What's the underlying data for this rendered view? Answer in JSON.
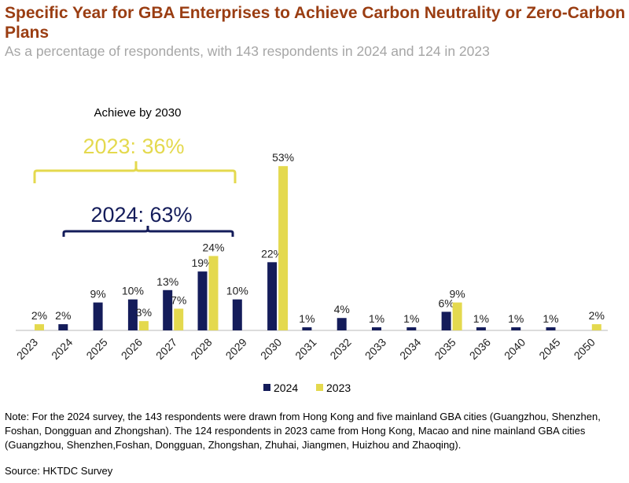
{
  "chart_data": {
    "type": "bar",
    "title": "Specific Year for GBA Enterprises to Achieve Carbon Neutrality or Zero-Carbon Plans",
    "subtitle": "As a percentage of respondents, with 143 respondents in 2024 and 124 in 2023",
    "categories": [
      "2023",
      "2024",
      "2025",
      "2026",
      "2027",
      "2028",
      "2029",
      "2030",
      "2031",
      "2032",
      "2033",
      "2034",
      "2035",
      "2036",
      "2040",
      "2045",
      "2050"
    ],
    "series": [
      {
        "name": "2024",
        "color": "#141c5a",
        "values": [
          null,
          2,
          9,
          10,
          13,
          19,
          10,
          22,
          1,
          4,
          1,
          1,
          6,
          1,
          1,
          1,
          null
        ]
      },
      {
        "name": "2023",
        "color": "#e4d94e",
        "values": [
          2,
          null,
          null,
          3,
          7,
          24,
          null,
          53,
          null,
          null,
          null,
          null,
          9,
          null,
          null,
          null,
          2
        ]
      }
    ],
    "value_suffix": "%",
    "ylim": [
      0,
      55
    ],
    "grid": false,
    "legend": "bottom",
    "annotations": {
      "heading": "Achieve by 2030",
      "label_2023": "2023: 36%",
      "label_2024": "2024: 63%"
    }
  },
  "note": "Note: For the 2024 survey, the 143 respondents were drawn from Hong Kong and five mainland GBA cities (Guangzhou, Shenzhen, Foshan, Dongguan and Zhongshan). The 124 respondents in 2023 came from Hong Kong, Macao and nine mainland GBA cities (Guangzhou, Shenzhen,Foshan, Dongguan, Zhongshan, Zhuhai, Jiangmen, Huizhou and Zhaoqing).",
  "source": "Source: HKTDC Survey"
}
